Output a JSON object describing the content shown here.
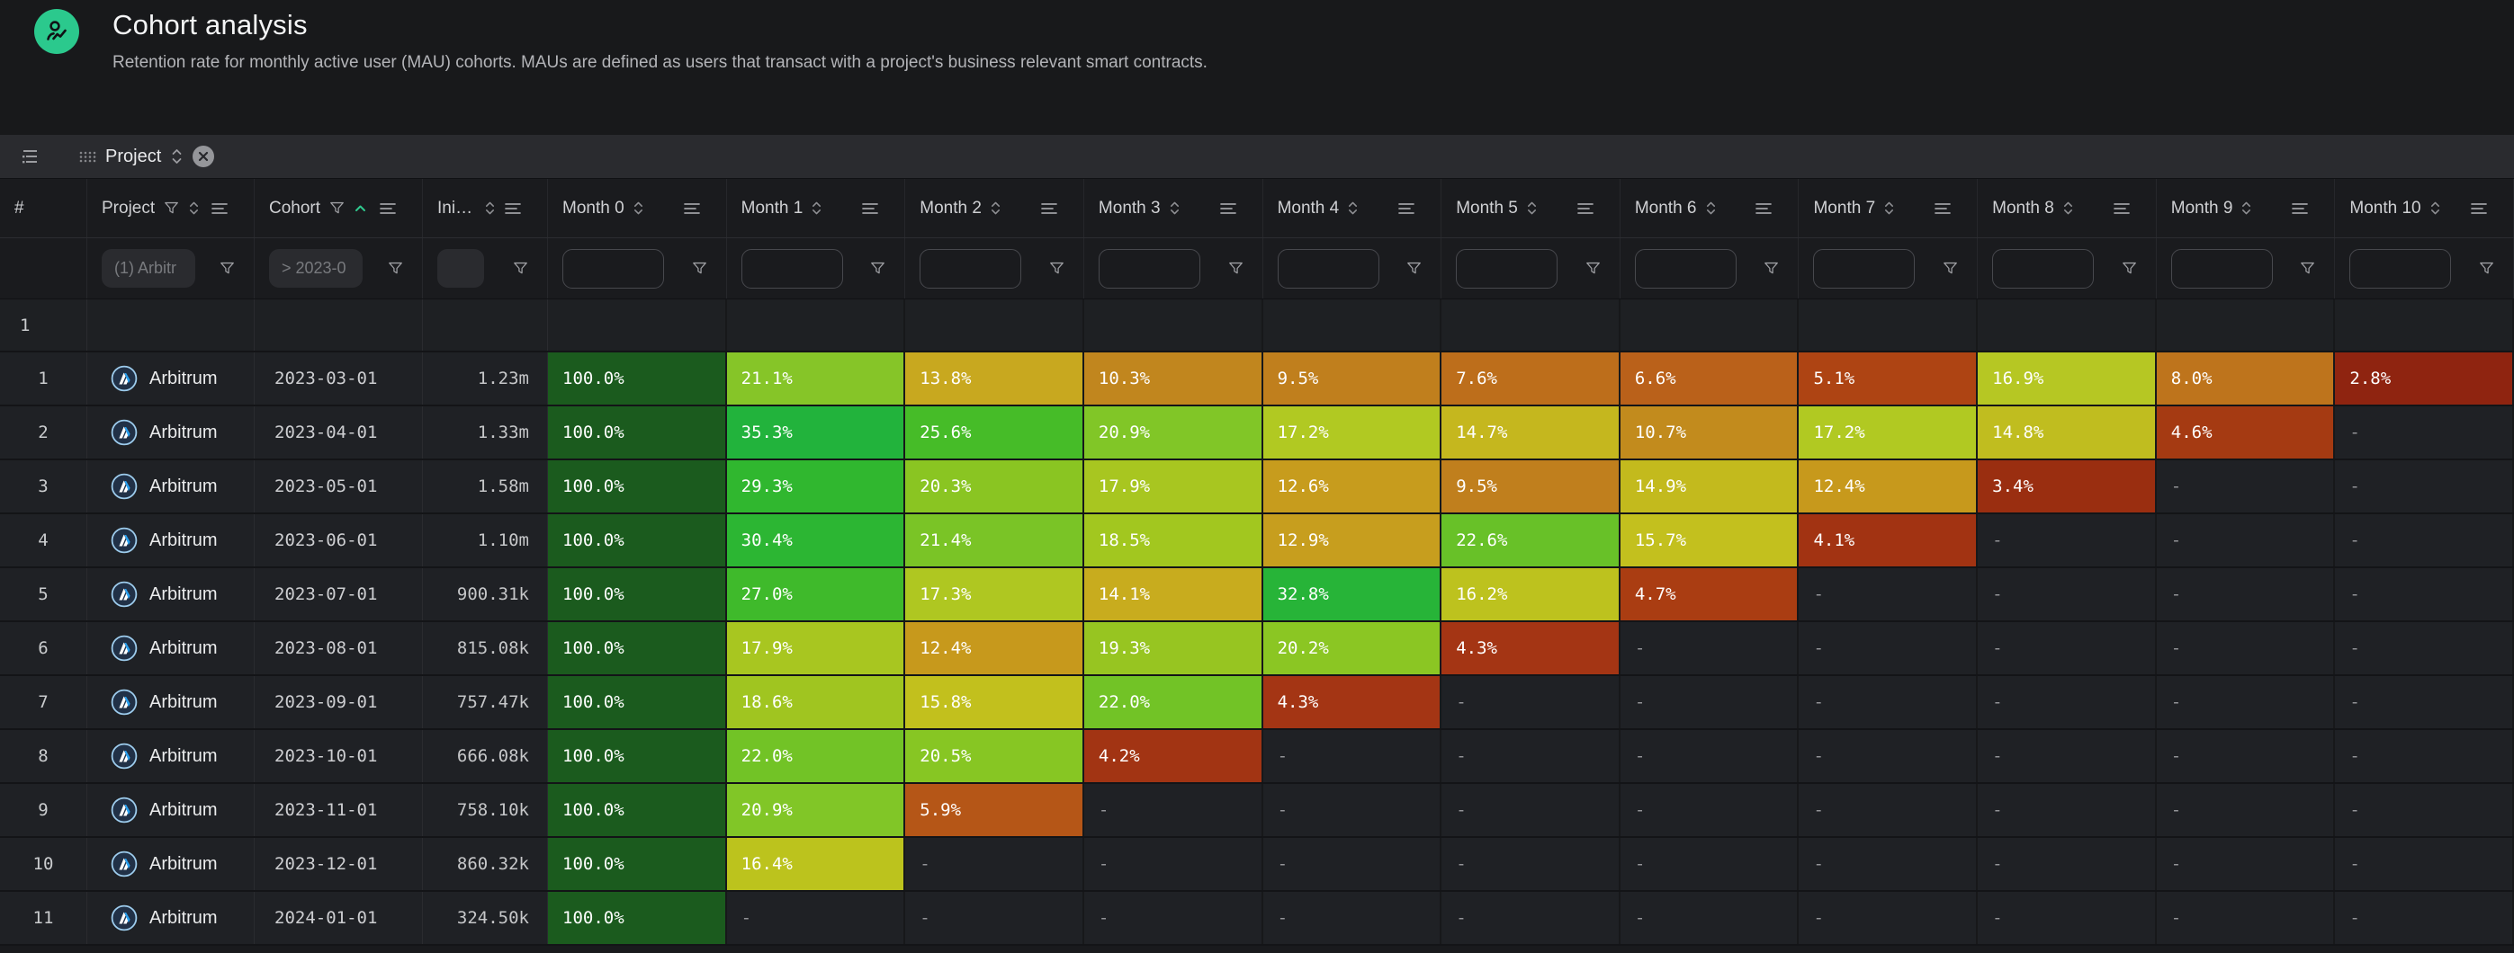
{
  "page": {
    "title": "Cohort analysis",
    "subtitle": "Retention rate for monthly active user (MAU) cohorts. MAUs are defined as users that transact with a project's business relevant smart contracts.",
    "avatar_color": "#2bc98d"
  },
  "toolbar": {
    "group_chip": {
      "label": "Project"
    }
  },
  "colors": {
    "accent_green": "#2fc98e",
    "heat_max": "#1b5b1e",
    "heat_min": "#8f2410",
    "toolbar_bg": "#2a2b2f",
    "row_bg": "#1f2125",
    "page_bg": "#18191b"
  },
  "table": {
    "columns": [
      {
        "id": "rownum",
        "label": "#",
        "type": "num"
      },
      {
        "id": "project",
        "label": "Project",
        "type": "project",
        "filter_icon": true,
        "sort": "updown",
        "menu": true,
        "filter_kind": "pill-wide",
        "filter_value": "(1) Arbitr"
      },
      {
        "id": "cohort",
        "label": "Cohort",
        "type": "cohort",
        "filter_icon": true,
        "sort": "asc",
        "menu": true,
        "filter_kind": "pill-wide",
        "filter_value": "> 2023-0"
      },
      {
        "id": "initial",
        "label": "Initi...",
        "type": "initial",
        "filter_icon": false,
        "sort": "updown",
        "menu": true,
        "filter_kind": "pill-small",
        "filter_value": ""
      },
      {
        "id": "m0",
        "label": "Month 0",
        "type": "month",
        "sort": "updown",
        "menu": true,
        "filter_kind": "outline",
        "filter_value": ""
      },
      {
        "id": "m1",
        "label": "Month 1",
        "type": "month",
        "sort": "updown",
        "menu": true,
        "filter_kind": "outline",
        "filter_value": ""
      },
      {
        "id": "m2",
        "label": "Month 2",
        "type": "month",
        "sort": "updown",
        "menu": true,
        "filter_kind": "outline",
        "filter_value": ""
      },
      {
        "id": "m3",
        "label": "Month 3",
        "type": "month",
        "sort": "updown",
        "menu": true,
        "filter_kind": "outline",
        "filter_value": ""
      },
      {
        "id": "m4",
        "label": "Month 4",
        "type": "month",
        "sort": "updown",
        "menu": true,
        "filter_kind": "outline",
        "filter_value": ""
      },
      {
        "id": "m5",
        "label": "Month 5",
        "type": "month",
        "sort": "updown",
        "menu": true,
        "filter_kind": "outline",
        "filter_value": ""
      },
      {
        "id": "m6",
        "label": "Month 6",
        "type": "month",
        "sort": "updown",
        "menu": true,
        "filter_kind": "outline",
        "filter_value": ""
      },
      {
        "id": "m7",
        "label": "Month 7",
        "type": "month",
        "sort": "updown",
        "menu": true,
        "filter_kind": "outline",
        "filter_value": ""
      },
      {
        "id": "m8",
        "label": "Month 8",
        "type": "month",
        "sort": "updown",
        "menu": true,
        "filter_kind": "outline",
        "filter_value": ""
      },
      {
        "id": "m9",
        "label": "Month 9",
        "type": "month",
        "sort": "updown",
        "menu": true,
        "filter_kind": "outline",
        "filter_value": ""
      },
      {
        "id": "m10",
        "label": "Month 10",
        "type": "month",
        "sort": "updown",
        "menu": true,
        "filter_kind": "outline",
        "filter_value": ""
      }
    ],
    "pinned_row": {
      "num": "1"
    },
    "rows": [
      {
        "num": "1",
        "project": "Arbitrum",
        "cohort": "2023-03-01",
        "initial": "1.23m",
        "cells": [
          [
            "100.0%",
            "#1b5b1e"
          ],
          [
            "21.1%",
            "#86c528"
          ],
          [
            "13.8%",
            "#c8a81f"
          ],
          [
            "10.3%",
            "#c1861e"
          ],
          [
            "9.5%",
            "#c07f1d"
          ],
          [
            "7.6%",
            "#bd6e1b"
          ],
          [
            "6.6%",
            "#ba611a"
          ],
          [
            "5.1%",
            "#ae4413"
          ],
          [
            "16.9%",
            "#b6c723"
          ],
          [
            "8.0%",
            "#be741c"
          ],
          [
            "2.8%",
            "#8f2410"
          ]
        ]
      },
      {
        "num": "2",
        "project": "Arbitrum",
        "cohort": "2023-04-01",
        "initial": "1.33m",
        "cells": [
          [
            "100.0%",
            "#1b5b1e"
          ],
          [
            "35.3%",
            "#22b33c"
          ],
          [
            "25.6%",
            "#46bc28"
          ],
          [
            "20.9%",
            "#81c627"
          ],
          [
            "17.2%",
            "#b1c922"
          ],
          [
            "14.7%",
            "#c5b71e"
          ],
          [
            "10.7%",
            "#c28b1d"
          ],
          [
            "17.2%",
            "#b1c922"
          ],
          [
            "14.8%",
            "#c0bd1f"
          ],
          [
            "4.6%",
            "#a53a12"
          ],
          [
            "-",
            null
          ]
        ]
      },
      {
        "num": "3",
        "project": "Arbitrum",
        "cohort": "2023-05-01",
        "initial": "1.58m",
        "cells": [
          [
            "100.0%",
            "#1b5b1e"
          ],
          [
            "29.3%",
            "#30b72f"
          ],
          [
            "20.3%",
            "#8ac522"
          ],
          [
            "17.9%",
            "#a8c620"
          ],
          [
            "12.6%",
            "#c79c1d"
          ],
          [
            "9.5%",
            "#c07f1d"
          ],
          [
            "14.9%",
            "#c3ba1d"
          ],
          [
            "12.4%",
            "#c7991c"
          ],
          [
            "3.4%",
            "#9a2e10"
          ],
          [
            "-",
            null
          ],
          [
            "-",
            null
          ]
        ]
      },
      {
        "num": "4",
        "project": "Arbitrum",
        "cohort": "2023-06-01",
        "initial": "1.10m",
        "cells": [
          [
            "100.0%",
            "#1b5b1e"
          ],
          [
            "30.4%",
            "#2cb633"
          ],
          [
            "21.4%",
            "#7ac426"
          ],
          [
            "18.5%",
            "#a2c71f"
          ],
          [
            "12.9%",
            "#c79e1e"
          ],
          [
            "22.6%",
            "#68c128"
          ],
          [
            "15.7%",
            "#c3c01e"
          ],
          [
            "4.1%",
            "#a23312"
          ],
          [
            "-",
            null
          ],
          [
            "-",
            null
          ],
          [
            "-",
            null
          ]
        ]
      },
      {
        "num": "5",
        "project": "Arbitrum",
        "cohort": "2023-07-01",
        "initial": "900.31k",
        "cells": [
          [
            "100.0%",
            "#1b5b1e"
          ],
          [
            "27.0%",
            "#3fba2b"
          ],
          [
            "17.3%",
            "#afc721"
          ],
          [
            "14.1%",
            "#c8ac1e"
          ],
          [
            "32.8%",
            "#27b438"
          ],
          [
            "16.2%",
            "#bdc21e"
          ],
          [
            "4.7%",
            "#aa3d12"
          ],
          [
            "-",
            null
          ],
          [
            "-",
            null
          ],
          [
            "-",
            null
          ],
          [
            "-",
            null
          ]
        ]
      },
      {
        "num": "6",
        "project": "Arbitrum",
        "cohort": "2023-08-01",
        "initial": "815.08k",
        "cells": [
          [
            "100.0%",
            "#1b5b1e"
          ],
          [
            "17.9%",
            "#a8c620"
          ],
          [
            "12.4%",
            "#c7991c"
          ],
          [
            "19.3%",
            "#97c521"
          ],
          [
            "20.2%",
            "#8bc623"
          ],
          [
            "4.3%",
            "#a43514"
          ],
          [
            "-",
            null
          ],
          [
            "-",
            null
          ],
          [
            "-",
            null
          ],
          [
            "-",
            null
          ],
          [
            "-",
            null
          ]
        ]
      },
      {
        "num": "7",
        "project": "Arbitrum",
        "cohort": "2023-09-01",
        "initial": "757.47k",
        "cells": [
          [
            "100.0%",
            "#1b5b1e"
          ],
          [
            "18.6%",
            "#a0c520"
          ],
          [
            "15.8%",
            "#c2c01d"
          ],
          [
            "22.0%",
            "#72c326"
          ],
          [
            "4.3%",
            "#a43514"
          ],
          [
            "-",
            null
          ],
          [
            "-",
            null
          ],
          [
            "-",
            null
          ],
          [
            "-",
            null
          ],
          [
            "-",
            null
          ],
          [
            "-",
            null
          ]
        ]
      },
      {
        "num": "8",
        "project": "Arbitrum",
        "cohort": "2023-10-01",
        "initial": "666.08k",
        "cells": [
          [
            "100.0%",
            "#1b5b1e"
          ],
          [
            "22.0%",
            "#72c326"
          ],
          [
            "20.5%",
            "#87c623"
          ],
          [
            "4.2%",
            "#a23413"
          ],
          [
            "-",
            null
          ],
          [
            "-",
            null
          ],
          [
            "-",
            null
          ],
          [
            "-",
            null
          ],
          [
            "-",
            null
          ],
          [
            "-",
            null
          ],
          [
            "-",
            null
          ]
        ]
      },
      {
        "num": "9",
        "project": "Arbitrum",
        "cohort": "2023-11-01",
        "initial": "758.10k",
        "cells": [
          [
            "100.0%",
            "#1b5b1e"
          ],
          [
            "20.9%",
            "#81c627"
          ],
          [
            "5.9%",
            "#b55617"
          ],
          [
            "-",
            null
          ],
          [
            "-",
            null
          ],
          [
            "-",
            null
          ],
          [
            "-",
            null
          ],
          [
            "-",
            null
          ],
          [
            "-",
            null
          ],
          [
            "-",
            null
          ],
          [
            "-",
            null
          ]
        ]
      },
      {
        "num": "10",
        "project": "Arbitrum",
        "cohort": "2023-12-01",
        "initial": "860.32k",
        "cells": [
          [
            "100.0%",
            "#1b5b1e"
          ],
          [
            "16.4%",
            "#bcc31d"
          ],
          [
            "-",
            null
          ],
          [
            "-",
            null
          ],
          [
            "-",
            null
          ],
          [
            "-",
            null
          ],
          [
            "-",
            null
          ],
          [
            "-",
            null
          ],
          [
            "-",
            null
          ],
          [
            "-",
            null
          ],
          [
            "-",
            null
          ]
        ]
      },
      {
        "num": "11",
        "project": "Arbitrum",
        "cohort": "2024-01-01",
        "initial": "324.50k",
        "cells": [
          [
            "100.0%",
            "#1b5b1e"
          ],
          [
            "-",
            null
          ],
          [
            "-",
            null
          ],
          [
            "-",
            null
          ],
          [
            "-",
            null
          ],
          [
            "-",
            null
          ],
          [
            "-",
            null
          ],
          [
            "-",
            null
          ],
          [
            "-",
            null
          ],
          [
            "-",
            null
          ],
          [
            "-",
            null
          ]
        ]
      }
    ]
  }
}
